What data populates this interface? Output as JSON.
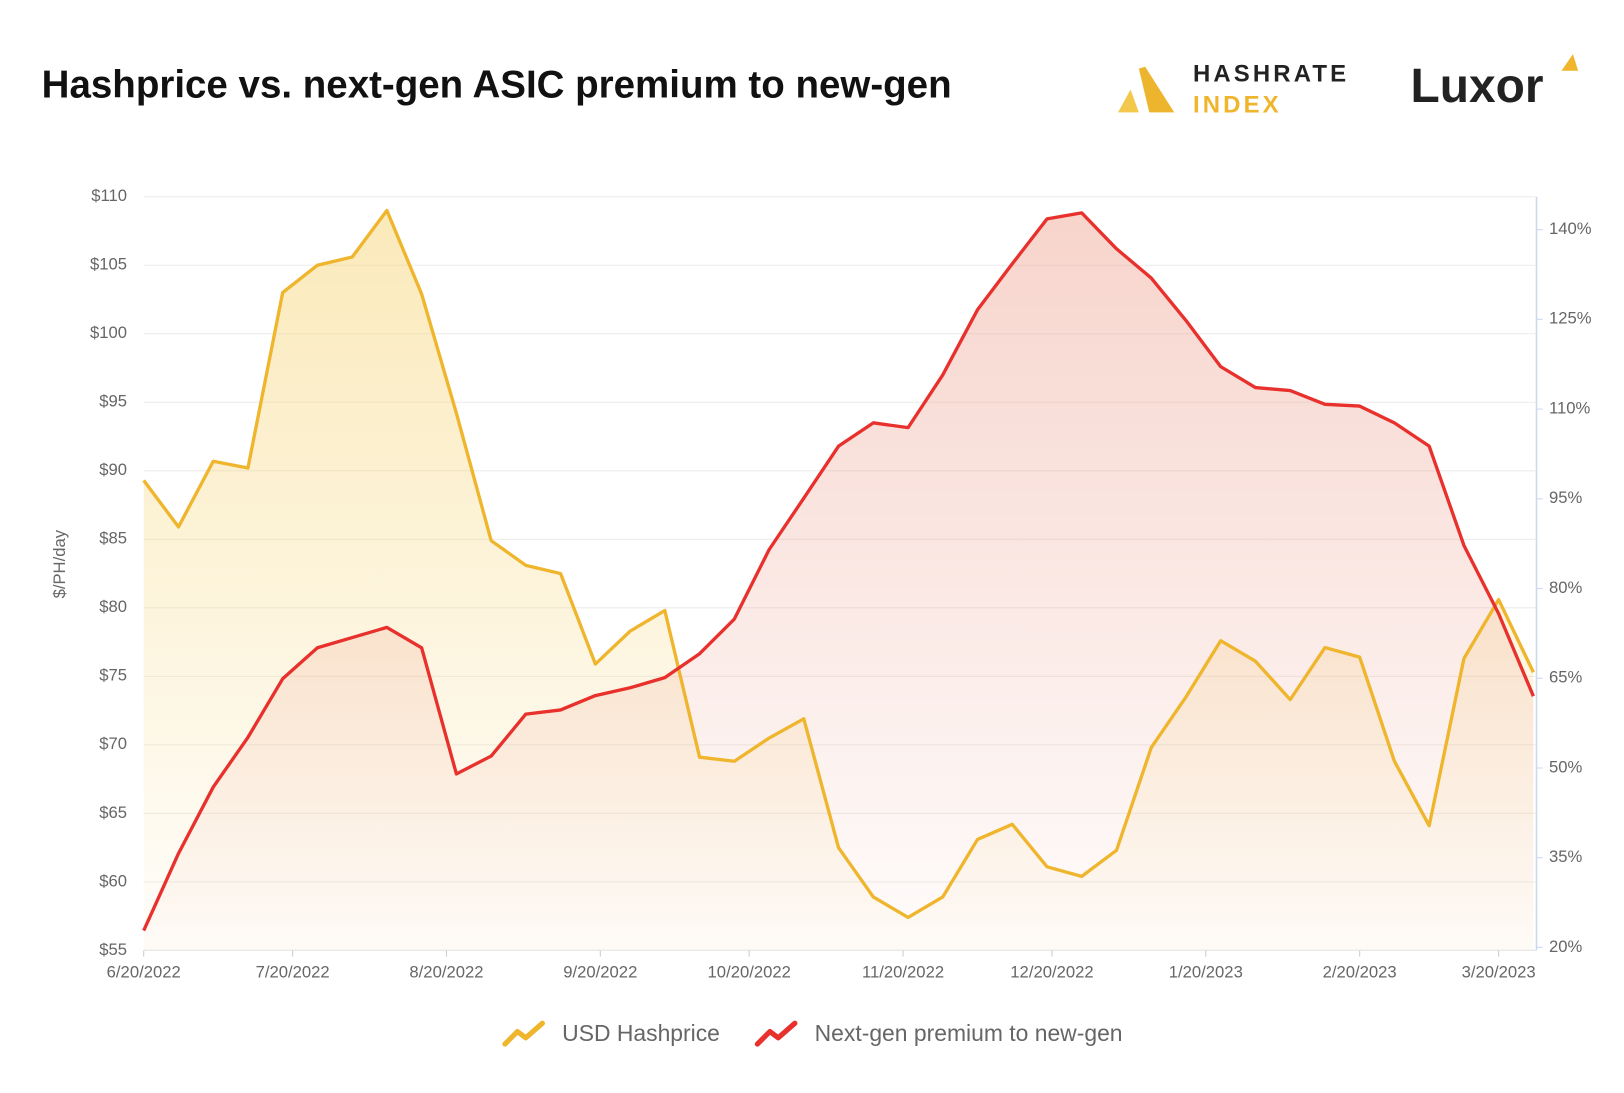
{
  "logos": {
    "hashrate": "HASHRATE",
    "index": "INDEX",
    "luxor": "Luxor"
  },
  "chart_data": {
    "type": "line",
    "title": "Hashprice vs. next-gen ASIC premium to new-gen",
    "y_label": "$/PH/day",
    "x": [
      "2022-06-20",
      "2022-06-27",
      "2022-07-04",
      "2022-07-11",
      "2022-07-18",
      "2022-07-25",
      "2022-08-01",
      "2022-08-08",
      "2022-08-15",
      "2022-08-22",
      "2022-08-29",
      "2022-09-05",
      "2022-09-12",
      "2022-09-19",
      "2022-09-26",
      "2022-10-03",
      "2022-10-10",
      "2022-10-17",
      "2022-10-24",
      "2022-10-31",
      "2022-11-07",
      "2022-11-14",
      "2022-11-21",
      "2022-11-28",
      "2022-12-05",
      "2022-12-12",
      "2022-12-19",
      "2022-12-26",
      "2023-01-02",
      "2023-01-09",
      "2023-01-16",
      "2023-01-23",
      "2023-01-30",
      "2023-02-06",
      "2023-02-13",
      "2023-02-20",
      "2023-02-27",
      "2023-03-06",
      "2023-03-13",
      "2023-03-20",
      "2023-03-27"
    ],
    "xlim": [
      "2022-06-20",
      "2023-03-27"
    ],
    "xticks": [
      {
        "value": "2022-06-20",
        "label": "6/20/2022"
      },
      {
        "value": "2022-07-20",
        "label": "7/20/2022"
      },
      {
        "value": "2022-08-20",
        "label": "8/20/2022"
      },
      {
        "value": "2022-09-20",
        "label": "9/20/2022"
      },
      {
        "value": "2022-10-20",
        "label": "10/20/2022"
      },
      {
        "value": "2022-11-20",
        "label": "11/20/2022"
      },
      {
        "value": "2022-12-20",
        "label": "12/20/2022"
      },
      {
        "value": "2023-01-20",
        "label": "1/20/2023"
      },
      {
        "value": "2023-02-20",
        "label": "2/20/2023"
      },
      {
        "value": "2023-03-20",
        "label": "3/20/2023"
      }
    ],
    "ylim": [
      55,
      110
    ],
    "yticks": [
      {
        "value": 55,
        "label": "$55"
      },
      {
        "value": 60,
        "label": "$60"
      },
      {
        "value": 65,
        "label": "$65"
      },
      {
        "value": 70,
        "label": "$70"
      },
      {
        "value": 75,
        "label": "$75"
      },
      {
        "value": 80,
        "label": "$80"
      },
      {
        "value": 85,
        "label": "$85"
      },
      {
        "value": 90,
        "label": "$90"
      },
      {
        "value": 95,
        "label": "$95"
      },
      {
        "value": 100,
        "label": "$100"
      },
      {
        "value": 105,
        "label": "$105"
      },
      {
        "value": 110,
        "label": "$110"
      }
    ],
    "y2lim": [
      19.5,
      145.5
    ],
    "y2ticks": [
      {
        "value": 20,
        "label": "20%"
      },
      {
        "value": 35,
        "label": "35%"
      },
      {
        "value": 50,
        "label": "50%"
      },
      {
        "value": 65,
        "label": "65%"
      },
      {
        "value": 80,
        "label": "80%"
      },
      {
        "value": 95,
        "label": "95%"
      },
      {
        "value": 110,
        "label": "110%"
      },
      {
        "value": 125,
        "label": "125%"
      },
      {
        "value": 140,
        "label": "140%"
      }
    ],
    "grid": true,
    "series": [
      {
        "name": "USD Hashprice",
        "color": "#efb52d",
        "fill": "#f5cf66",
        "values": [
          89.3,
          85.9,
          90.7,
          90.2,
          103.0,
          105.0,
          105.6,
          109.0,
          102.9,
          94.2,
          84.9,
          83.1,
          82.5,
          75.9,
          78.3,
          79.8,
          69.1,
          68.8,
          70.5,
          71.9,
          62.5,
          58.9,
          57.4,
          58.9,
          63.1,
          64.2,
          61.1,
          60.4,
          62.3,
          69.8,
          73.5,
          77.6,
          76.1,
          73.3,
          77.1,
          76.4,
          68.8,
          64.1,
          76.3,
          80.6,
          75.3
        ]
      },
      {
        "name": "Next-gen premium to new-gen",
        "color": "#e8302c",
        "fill": "#eda08e",
        "axis": "y2",
        "values": [
          22.8,
          35.7,
          46.8,
          55.1,
          64.9,
          70.1,
          71.8,
          73.5,
          70.1,
          49.0,
          52.0,
          59.0,
          59.7,
          62.1,
          63.4,
          65.1,
          69.1,
          74.9,
          86.5,
          95.1,
          103.8,
          107.7,
          106.9,
          115.7,
          126.6,
          134.3,
          141.8,
          142.8,
          136.8,
          131.9,
          124.8,
          117.1,
          113.6,
          113.1,
          110.8,
          110.5,
          107.7,
          103.8,
          87.2,
          75.8,
          62.0
        ]
      }
    ]
  }
}
